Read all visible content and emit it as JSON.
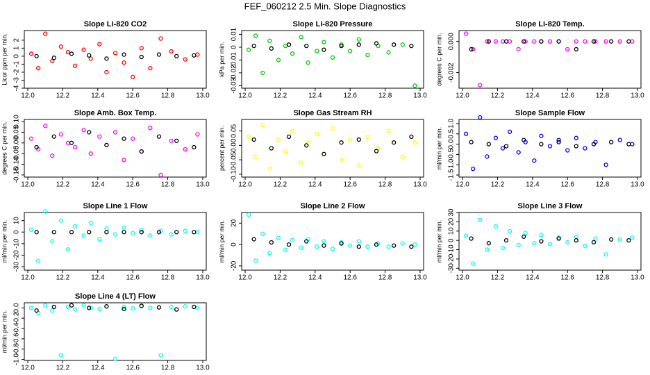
{
  "title": "FEF_060212  2.5 Min. Slope Diagnostics",
  "chart_data": [
    {
      "type": "scatter",
      "title": "Slope Li-820 CO2",
      "y_label": "Licor ppm per min.",
      "xlim": [
        11.98,
        13.02
      ],
      "xticks": [
        {
          "value": 12,
          "label": "12.0"
        },
        12.2,
        12.4,
        12.6,
        12.8,
        {
          "value": 13,
          "label": "13.0"
        }
      ],
      "ylim": [
        -4,
        3.2
      ],
      "yticks": [
        -4,
        -3,
        -2,
        -1,
        0,
        1,
        2
      ],
      "series": [
        {
          "color": "#ff0000",
          "x": [
            12.02,
            12.06,
            12.1,
            12.14,
            12.19,
            12.23,
            12.27,
            12.32,
            12.36,
            12.41,
            12.45,
            12.5,
            12.55,
            12.6,
            12.65,
            12.7,
            12.76,
            12.82,
            12.9,
            12.97
          ],
          "values": [
            0.3,
            -1.5,
            2.8,
            -0.6,
            1.2,
            0.5,
            -1.2,
            0.8,
            -0.3,
            1.5,
            -2,
            0.4,
            -0.8,
            -2.6,
            1,
            -1.5,
            2.2,
            0.6,
            -0.4,
            0.2
          ]
        },
        {
          "color": "#000000",
          "x": [
            12.05,
            12.15,
            12.25,
            12.35,
            12.45,
            12.55,
            12.65,
            12.75,
            12.85,
            12.95
          ],
          "values": [
            0,
            -0.2,
            0.3,
            0.1,
            -0.3,
            0.2,
            -0.1,
            0.2,
            0,
            0.1
          ]
        }
      ]
    },
    {
      "type": "scatter",
      "title": "Slope Li-820 Pressure",
      "y_label": "kPa per min.",
      "xlim": [
        11.98,
        13.02
      ],
      "xticks": [
        {
          "value": 12,
          "label": "12.0"
        },
        12.2,
        12.4,
        12.6,
        12.8,
        {
          "value": 13,
          "label": "13.0"
        }
      ],
      "ylim": [
        -0.032,
        0.013
      ],
      "yticks": [
        -0.03,
        -0.02,
        -0.01,
        0,
        0.01
      ],
      "series": [
        {
          "color": "#00cd00",
          "x": [
            12.02,
            12.06,
            12.1,
            12.14,
            12.19,
            12.23,
            12.27,
            12.32,
            12.36,
            12.41,
            12.45,
            12.5,
            12.55,
            12.6,
            12.65,
            12.7,
            12.76,
            12.82,
            12.9,
            12.97
          ],
          "values": [
            -0.002,
            0.009,
            -0.02,
            0.005,
            -0.01,
            0.001,
            -0.005,
            0.008,
            -0.012,
            -0.003,
            0.004,
            -0.008,
            0.002,
            -0.003,
            0.006,
            -0.006,
            0.001,
            -0.004,
            0.002,
            -0.03
          ]
        },
        {
          "color": "#000000",
          "x": [
            12.05,
            12.15,
            12.25,
            12.35,
            12.45,
            12.55,
            12.65,
            12.75,
            12.85,
            12.95
          ],
          "values": [
            0.001,
            -0.001,
            0.002,
            0.001,
            -0.002,
            0.001,
            0.002,
            0.003,
            0.002,
            0.001
          ]
        }
      ]
    },
    {
      "type": "scatter",
      "title": "Slope Li-820 Temp.",
      "y_label": "degrees C per min.",
      "xlim": [
        11.98,
        13.02
      ],
      "xticks": [
        {
          "value": 12,
          "label": "12.0"
        },
        12.2,
        12.4,
        12.6,
        12.8,
        {
          "value": 13,
          "label": "13.0"
        }
      ],
      "ylim": [
        -0.003,
        0.0007
      ],
      "yticks": [
        -0.002,
        {
          "value": 0,
          "label": "0.000"
        }
      ],
      "series": [
        {
          "color": "#ff00ff",
          "x": [
            12.02,
            12.06,
            12.1,
            12.14,
            12.19,
            12.23,
            12.27,
            12.32,
            12.36,
            12.41,
            12.45,
            12.5,
            12.55,
            12.6,
            12.65,
            12.7,
            12.76,
            12.82,
            12.9,
            12.97
          ],
          "values": [
            0.0005,
            -0.0005,
            -0.0028,
            0,
            0,
            0,
            0,
            -0.0005,
            0,
            0,
            0,
            0,
            0,
            -0.0005,
            0,
            0,
            0,
            0,
            0,
            0
          ]
        },
        {
          "color": "#000000",
          "x": [
            12.05,
            12.15,
            12.25,
            12.35,
            12.45,
            12.55,
            12.65,
            12.75,
            12.85,
            12.95
          ],
          "values": [
            -0.0005,
            0,
            0,
            0,
            0,
            0,
            -0.0005,
            0,
            0,
            0
          ]
        }
      ]
    },
    {
      "type": "scatter",
      "title": "Slope Amb. Box Temp.",
      "y_label": "degrees C per min.",
      "xlim": [
        11.98,
        13.02
      ],
      "xticks": [
        {
          "value": 12,
          "label": "12.0"
        },
        12.2,
        12.4,
        12.6,
        12.8,
        {
          "value": 13,
          "label": "13.0"
        }
      ],
      "ylim": [
        -0.16,
        0.11
      ],
      "yticks": [
        {
          "value": -0.15,
          "label": "-0.15"
        },
        {
          "value": -0.1,
          "label": "-0.10"
        },
        {
          "value": -0.05,
          "label": "-0.05"
        },
        {
          "value": 0,
          "label": "0.00"
        },
        {
          "value": 0.05,
          "label": "0.05"
        },
        {
          "value": 0.1,
          "label": "0.10"
        }
      ],
      "series": [
        {
          "color": "#ff00ff",
          "x": [
            12.02,
            12.06,
            12.1,
            12.14,
            12.19,
            12.23,
            12.27,
            12.32,
            12.36,
            12.41,
            12.45,
            12.5,
            12.55,
            12.6,
            12.65,
            12.7,
            12.76,
            12.82,
            12.9,
            12.97
          ],
          "values": [
            0.02,
            -0.03,
            0.08,
            -0.06,
            0.04,
            0,
            -0.02,
            0.06,
            -0.05,
            0.03,
            -0.01,
            0.05,
            -0.08,
            0.02,
            -0.04,
            0.07,
            -0.15,
            0.01,
            -0.03,
            0.04
          ]
        },
        {
          "color": "#000000",
          "x": [
            12.05,
            12.15,
            12.25,
            12.35,
            12.45,
            12.55,
            12.65,
            12.75,
            12.85,
            12.95
          ],
          "values": [
            -0.02,
            0.03,
            0,
            0.05,
            -0.01,
            0.02,
            -0.04,
            0.03,
            0.01,
            -0.02
          ]
        }
      ]
    },
    {
      "type": "scatter",
      "title": "Slope Gas Stream RH",
      "y_label": "percent per min.",
      "xlim": [
        11.98,
        13.02
      ],
      "xticks": [
        {
          "value": 12,
          "label": "12.0"
        },
        12.2,
        12.4,
        12.6,
        12.8,
        {
          "value": 13,
          "label": "13.0"
        }
      ],
      "ylim": [
        -0.11,
        0.09
      ],
      "yticks": [
        {
          "value": -0.1,
          "label": "-0.10"
        },
        -0.05,
        {
          "value": 0,
          "label": "0.00"
        },
        0.05
      ],
      "series": [
        {
          "color": "#ffff00",
          "x": [
            12.02,
            12.06,
            12.1,
            12.14,
            12.19,
            12.23,
            12.27,
            12.32,
            12.36,
            12.41,
            12.45,
            12.5,
            12.55,
            12.6,
            12.65,
            12.7,
            12.76,
            12.82,
            12.9,
            12.97
          ],
          "values": [
            0.03,
            -0.04,
            0.07,
            -0.08,
            0.02,
            -0.02,
            0.05,
            -0.06,
            0.01,
            0.04,
            -0.03,
            0.06,
            -0.05,
            0.02,
            -0.07,
            0.03,
            -0.01,
            0.05,
            -0.04,
            0.01
          ]
        },
        {
          "color": "#000000",
          "x": [
            12.05,
            12.15,
            12.25,
            12.35,
            12.45,
            12.55,
            12.65,
            12.75,
            12.85,
            12.95
          ],
          "values": [
            0.02,
            -0.01,
            0.03,
            0,
            -0.03,
            0.01,
            0.02,
            -0.02,
            0.01,
            0.03
          ]
        }
      ]
    },
    {
      "type": "scatter",
      "title": "Slope Sample Flow",
      "y_label": "ml/min per min.",
      "xlim": [
        11.98,
        13.02
      ],
      "xticks": [
        {
          "value": 12,
          "label": "12.0"
        },
        12.2,
        12.4,
        12.6,
        12.8,
        {
          "value": 13,
          "label": "13.0"
        }
      ],
      "ylim": [
        -1.6,
        1.2
      ],
      "yticks": [
        -1.5,
        {
          "value": -1,
          "label": "-1.0"
        },
        -0.5,
        {
          "value": 0,
          "label": "0.0"
        },
        0.5,
        {
          "value": 1,
          "label": "1.0"
        }
      ],
      "series": [
        {
          "color": "#0000ff",
          "x": [
            12.02,
            12.06,
            12.1,
            12.14,
            12.19,
            12.23,
            12.27,
            12.32,
            12.36,
            12.41,
            12.45,
            12.5,
            12.55,
            12.6,
            12.65,
            12.7,
            12.76,
            12.82,
            12.9,
            12.97
          ],
          "values": [
            0.5,
            -1.2,
            1.3,
            -0.6,
            0.3,
            -0.2,
            0.6,
            -0.4,
            0.1,
            -0.8,
            0.4,
            -0.1,
            0.2,
            -0.3,
            0.3,
            -0.2,
            0.1,
            -1.0,
            0.2,
            0
          ]
        },
        {
          "color": "#000000",
          "x": [
            12.05,
            12.15,
            12.25,
            12.35,
            12.45,
            12.55,
            12.65,
            12.75,
            12.85,
            12.95
          ],
          "values": [
            0.1,
            0,
            -0.1,
            0.2,
            0,
            0.1,
            -0.1,
            0,
            0.1,
            0
          ]
        }
      ]
    },
    {
      "type": "scatter",
      "title": "Slope Line 1 Flow",
      "y_label": "ml/min per min.",
      "xlim": [
        11.98,
        13.02
      ],
      "xticks": [
        {
          "value": 12,
          "label": "12.0"
        },
        12.2,
        12.4,
        12.6,
        12.8,
        {
          "value": 13,
          "label": "13.0"
        }
      ],
      "ylim": [
        -33,
        17
      ],
      "yticks": [
        -30,
        -20,
        -10,
        0,
        10
      ],
      "series": [
        {
          "color": "#00ffff",
          "x": [
            12.02,
            12.06,
            12.1,
            12.14,
            12.19,
            12.23,
            12.27,
            12.32,
            12.36,
            12.41,
            12.45,
            12.5,
            12.55,
            12.6,
            12.65,
            12.7,
            12.76,
            12.82,
            12.9,
            12.97
          ],
          "values": [
            2,
            -25,
            18,
            -8,
            10,
            -15,
            5,
            -3,
            8,
            -6,
            3,
            -2,
            4,
            -1,
            2,
            -3,
            1,
            -2,
            1,
            0
          ]
        },
        {
          "color": "#000000",
          "x": [
            12.05,
            12.15,
            12.25,
            12.35,
            12.45,
            12.55,
            12.65,
            12.75,
            12.85,
            12.95
          ],
          "values": [
            0,
            0,
            0,
            0,
            0,
            0,
            0,
            0,
            0,
            0
          ]
        }
      ]
    },
    {
      "type": "scatter",
      "title": "Slope Line 2 Flow",
      "y_label": "ml/min per min.",
      "xlim": [
        11.98,
        13.02
      ],
      "xticks": [
        {
          "value": 12,
          "label": "12.0"
        },
        12.2,
        12.4,
        12.6,
        12.8,
        {
          "value": 13,
          "label": "13.0"
        }
      ],
      "ylim": [
        -24,
        30
      ],
      "yticks": [
        -20,
        0,
        20
      ],
      "series": [
        {
          "color": "#00ffff",
          "x": [
            12.02,
            12.06,
            12.1,
            12.14,
            12.19,
            12.23,
            12.27,
            12.32,
            12.36,
            12.41,
            12.45,
            12.5,
            12.55,
            12.6,
            12.65,
            12.7,
            12.76,
            12.82,
            12.9,
            12.97
          ],
          "values": [
            28,
            -15,
            10,
            -8,
            6,
            -5,
            4,
            -3,
            5,
            -2,
            3,
            -4,
            2,
            -1,
            3,
            -2,
            1,
            -2,
            1,
            0
          ]
        },
        {
          "color": "#000000",
          "x": [
            12.05,
            12.15,
            12.25,
            12.35,
            12.45,
            12.55,
            12.65,
            12.75,
            12.85,
            12.95
          ],
          "values": [
            5,
            2,
            0,
            3,
            -1,
            1,
            -2,
            0,
            -1,
            -2
          ]
        }
      ]
    },
    {
      "type": "scatter",
      "title": "Slope Line 3 Flow",
      "y_label": "ml/min per min.",
      "xlim": [
        11.98,
        13.02
      ],
      "xticks": [
        {
          "value": 12,
          "label": "12.0"
        },
        12.2,
        12.4,
        12.6,
        12.8,
        {
          "value": 13,
          "label": "13.0"
        }
      ],
      "ylim": [
        -32,
        30
      ],
      "yticks": [
        -30,
        -20,
        -10,
        0,
        10,
        20,
        30
      ],
      "series": [
        {
          "color": "#00ffff",
          "x": [
            12.02,
            12.06,
            12.1,
            12.14,
            12.19,
            12.23,
            12.27,
            12.32,
            12.36,
            12.41,
            12.45,
            12.5,
            12.55,
            12.6,
            12.65,
            12.7,
            12.76,
            12.82,
            12.9,
            12.97
          ],
          "values": [
            5,
            -25,
            22,
            -10,
            15,
            -8,
            10,
            -5,
            8,
            -3,
            6,
            -4,
            3,
            -2,
            4,
            -6,
            2,
            -15,
            1,
            3
          ]
        },
        {
          "color": "#000000",
          "x": [
            12.05,
            12.15,
            12.25,
            12.35,
            12.45,
            12.55,
            12.65,
            12.75,
            12.85,
            12.95
          ],
          "values": [
            2,
            -3,
            0,
            4,
            -1,
            2,
            0,
            -2,
            1,
            0
          ]
        }
      ]
    },
    {
      "type": "scatter",
      "title": "Slope Line 4 (LT) Flow",
      "y_label": "ml/min per min.",
      "xlim": [
        11.98,
        13.02
      ],
      "xticks": [
        {
          "value": 12,
          "label": "12.0"
        },
        12.2,
        12.4,
        12.6,
        12.8,
        {
          "value": 13,
          "label": "13.0"
        }
      ],
      "ylim": [
        -1.02,
        0.1
      ],
      "yticks": [
        {
          "value": -1,
          "label": "-1.0"
        },
        -0.8,
        -0.6,
        -0.4,
        -0.2,
        {
          "value": 0,
          "label": "0.0"
        }
      ],
      "series": [
        {
          "color": "#00ffff",
          "x": [
            12.02,
            12.06,
            12.1,
            12.14,
            12.19,
            12.23,
            12.27,
            12.32,
            12.36,
            12.41,
            12.45,
            12.5,
            12.55,
            12.6,
            12.65,
            12.7,
            12.76,
            12.82,
            12.9,
            12.97
          ],
          "values": [
            0,
            -0.1,
            0.05,
            -0.05,
            -0.92,
            0.02,
            -0.03,
            0.05,
            0,
            -0.02,
            0.03,
            -0.99,
            0.02,
            -0.01,
            0.04,
            0,
            -0.92,
            0.02,
            0.03,
            0
          ]
        },
        {
          "color": "#000000",
          "x": [
            12.05,
            12.15,
            12.25,
            12.35,
            12.45,
            12.55,
            12.65,
            12.75,
            12.85,
            12.95
          ],
          "values": [
            -0.05,
            0.02,
            0.05,
            0,
            0.03,
            -0.02,
            0.04,
            0.01,
            -0.03,
            0.02
          ]
        }
      ]
    }
  ]
}
